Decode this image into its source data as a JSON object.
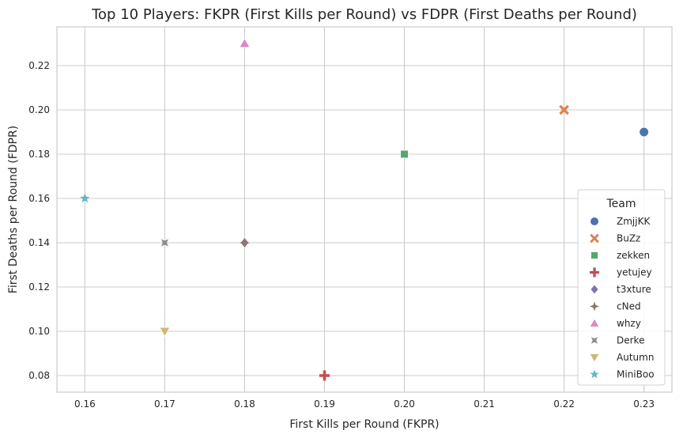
{
  "chart_data": {
    "type": "scatter",
    "title": "Top 10 Players: FKPR (First Kills per Round) vs FDPR (First Deaths per Round)",
    "xlabel": "First Kills per Round (FKPR)",
    "ylabel": "First Deaths per Round (FDPR)",
    "xlim": [
      0.1565,
      0.2335
    ],
    "ylim": [
      0.0725,
      0.2375
    ],
    "x_ticks": [
      0.16,
      0.17,
      0.18,
      0.19,
      0.2,
      0.21,
      0.22,
      0.23
    ],
    "x_tick_labels": [
      "0.16",
      "0.17",
      "0.18",
      "0.19",
      "0.20",
      "0.21",
      "0.22",
      "0.23"
    ],
    "y_ticks": [
      0.08,
      0.1,
      0.12,
      0.14,
      0.16,
      0.18,
      0.2,
      0.22
    ],
    "y_tick_labels": [
      "0.08",
      "0.10",
      "0.12",
      "0.14",
      "0.16",
      "0.18",
      "0.20",
      "0.22"
    ],
    "grid": true,
    "legend": {
      "title": "Team",
      "placement": "lower-right"
    },
    "series": [
      {
        "name": "ZmjjKK",
        "marker": "circle",
        "color": "#4c72b0",
        "x": 0.23,
        "y": 0.19
      },
      {
        "name": "BuZz",
        "marker": "x",
        "color": "#dd8452",
        "x": 0.22,
        "y": 0.2
      },
      {
        "name": "zekken",
        "marker": "square",
        "color": "#55a868",
        "x": 0.2,
        "y": 0.18
      },
      {
        "name": "yetujey",
        "marker": "plus",
        "color": "#c44e52",
        "x": 0.19,
        "y": 0.08
      },
      {
        "name": "t3xture",
        "marker": "diamond",
        "color": "#8172b3",
        "x": 0.18,
        "y": 0.14
      },
      {
        "name": "cNed",
        "marker": "star4",
        "color": "#937860",
        "x": 0.18,
        "y": 0.14
      },
      {
        "name": "whzy",
        "marker": "triangle-up",
        "color": "#da8bc3",
        "x": 0.18,
        "y": 0.23
      },
      {
        "name": "Derke",
        "marker": "star4-x",
        "color": "#8c8c8c",
        "x": 0.17,
        "y": 0.14
      },
      {
        "name": "Autumn",
        "marker": "triangle-down",
        "color": "#ccb974",
        "x": 0.17,
        "y": 0.1
      },
      {
        "name": "MiniBoo",
        "marker": "star",
        "color": "#64b5cd",
        "x": 0.16,
        "y": 0.16
      }
    ]
  }
}
